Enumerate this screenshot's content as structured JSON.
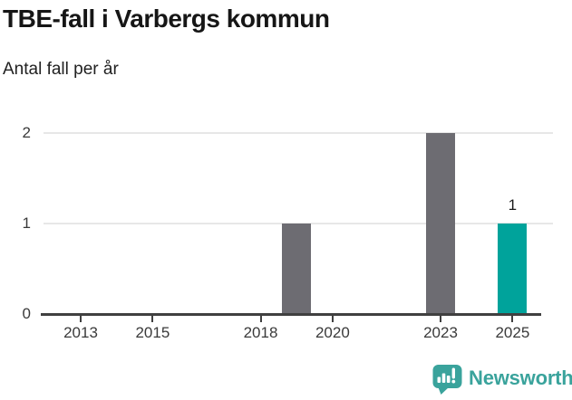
{
  "header": {
    "title": "TBE-fall i Varbergs kommun",
    "subtitle": "Antal fall per år"
  },
  "chart_data": {
    "type": "bar",
    "title": "TBE-fall i Varbergs kommun",
    "subtitle": "Antal fall per år",
    "ylabel": "Antal fall per år",
    "xlim": [
      2012,
      2026
    ],
    "ylim": [
      0,
      2
    ],
    "grid": true,
    "x_ticks": [
      2013,
      2015,
      2018,
      2020,
      2023,
      2025
    ],
    "y_ticks": [
      0,
      1,
      2
    ],
    "bars": [
      {
        "year": 2019,
        "value": 1,
        "highlight": false,
        "data_label": ""
      },
      {
        "year": 2023,
        "value": 2,
        "highlight": false,
        "data_label": ""
      },
      {
        "year": 2025,
        "value": 1,
        "highlight": true,
        "data_label": "1"
      }
    ]
  },
  "colors": {
    "bar": "#6d6c72",
    "bar_highlight": "#00a39b",
    "axis": "#404040",
    "gridline": "#e7e7e7",
    "title_text": "#161616",
    "tick_label": "#3a3a3a",
    "brand": "#3aa39c"
  },
  "footer": {
    "brand_name": "Newsworthy",
    "brand_icon": "newsworthy-chart-bubble-icon"
  }
}
